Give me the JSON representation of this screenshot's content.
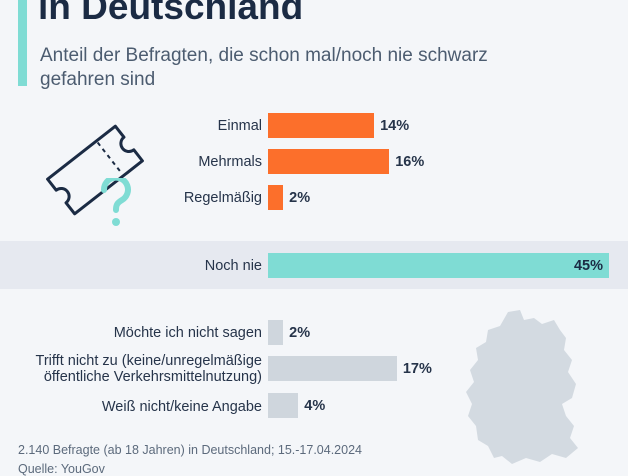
{
  "title": "in Deutschland",
  "subtitle": "Anteil der Befragten, die schon mal/noch nie schwarz gefahren sind",
  "footer": {
    "note": "2.140 Befragte (ab 18 Jahren) in Deutschland; 15.-17.04.2024",
    "source": "Quelle: YouGov"
  },
  "icons": [
    "ticket-icon",
    "question-mark-icon",
    "germany-map-icon"
  ],
  "colors": {
    "orange": "#fc6f2b",
    "teal": "#7fdcd4",
    "gray": "#cfd6dd",
    "band": "#e6e9f0",
    "accent": "#7fdcd4"
  },
  "chart_data": {
    "type": "bar",
    "orientation": "horizontal",
    "unit": "%",
    "categories": [
      "Einmal",
      "Mehrmals",
      "Regelmäßig",
      "Noch nie",
      "Möchte ich nicht sagen",
      "Trifft nicht zu (keine/unregelmäßige öffentliche Verkehrsmittelnutzung)",
      "Weiß nicht/keine Angabe"
    ],
    "values": [
      14,
      16,
      2,
      45,
      2,
      17,
      4
    ],
    "value_labels": [
      "14%",
      "16%",
      "2%",
      "45%",
      "2%",
      "17%",
      "4%"
    ],
    "groups": [
      "orange",
      "orange",
      "orange",
      "teal",
      "gray",
      "gray",
      "gray"
    ],
    "xlim": [
      0,
      45
    ],
    "grid": false,
    "legend": "none"
  }
}
